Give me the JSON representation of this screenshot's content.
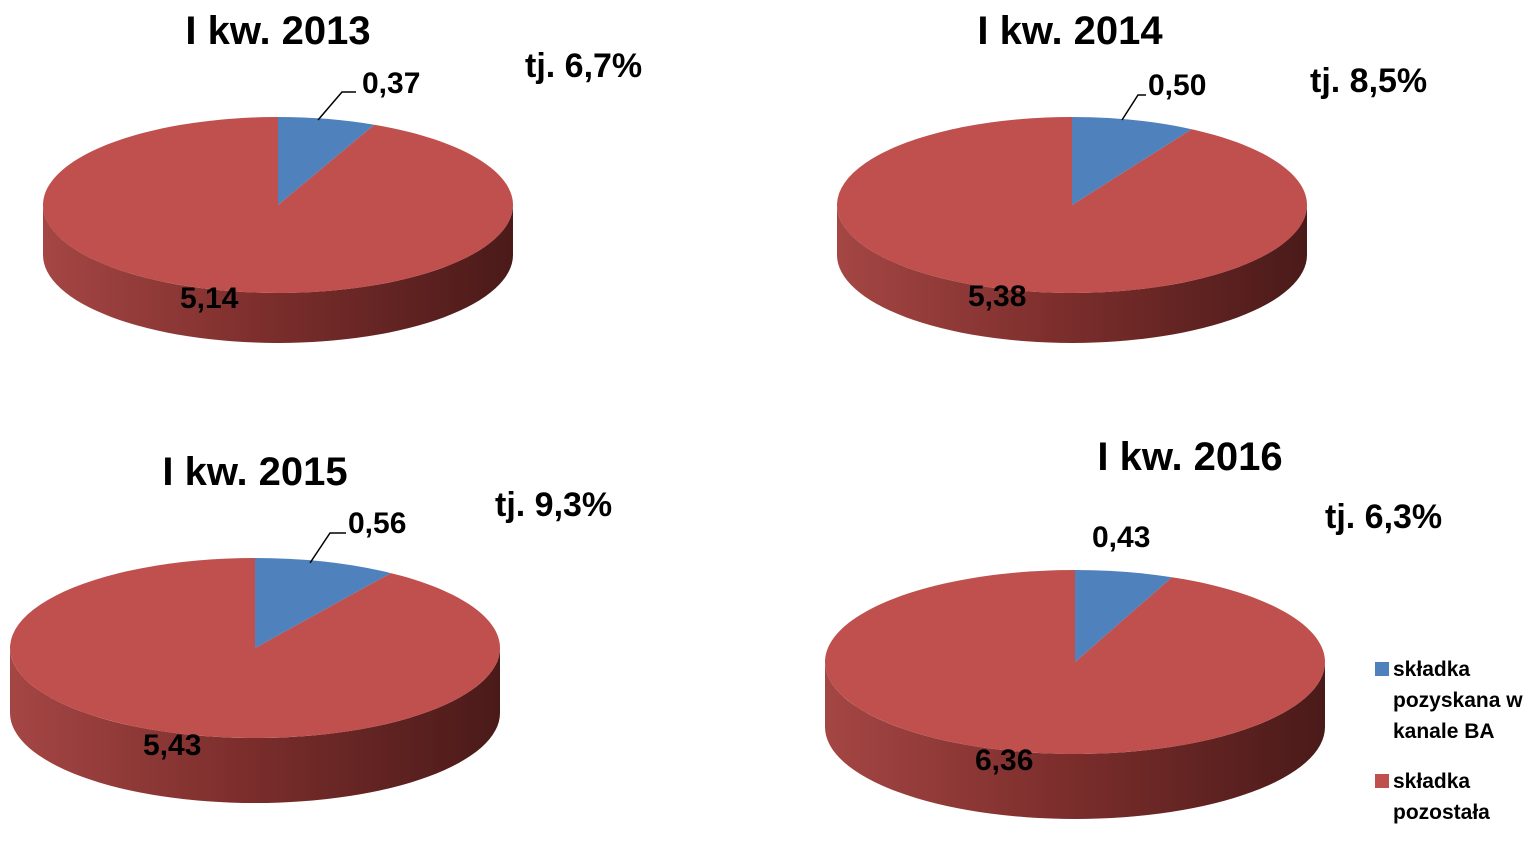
{
  "chart_data": [
    {
      "type": "pie",
      "title": "I kw. 2013",
      "share_text": "tj. 6,7%",
      "categories": [
        "składka pozyskana w kanale BA",
        "składka pozostała"
      ],
      "values": [
        0.37,
        5.14
      ],
      "value_labels": [
        "0,37",
        "5,14"
      ]
    },
    {
      "type": "pie",
      "title": "I kw. 2014",
      "share_text": "tj. 8,5%",
      "categories": [
        "składka pozyskana w kanale BA",
        "składka pozostała"
      ],
      "values": [
        0.5,
        5.38
      ],
      "value_labels": [
        "0,50",
        "5,38"
      ]
    },
    {
      "type": "pie",
      "title": "I kw. 2015",
      "share_text": "tj. 9,3%",
      "categories": [
        "składka pozyskana w kanale BA",
        "składka pozostała"
      ],
      "values": [
        0.56,
        5.43
      ],
      "value_labels": [
        "0,56",
        "5,43"
      ]
    },
    {
      "type": "pie",
      "title": "I kw. 2016",
      "share_text": "tj. 6,3%",
      "categories": [
        "składka pozyskana w kanale BA",
        "składka pozostała"
      ],
      "values": [
        0.43,
        6.36
      ],
      "value_labels": [
        "0,43",
        "6,36"
      ]
    }
  ],
  "legend": {
    "placement": "bottom-right",
    "items": [
      {
        "lines": [
          "składka",
          "pozyskana w",
          "kanale BA"
        ],
        "color": "#4F81BD"
      },
      {
        "lines": [
          "składka",
          "pozostała"
        ],
        "color": "#C0504D"
      }
    ]
  },
  "colors": {
    "blue_slice": "#4F81BD",
    "red_slice": "#C0504D",
    "red_side_dark": "#4A1A19",
    "red_side_light": "#A44644"
  }
}
